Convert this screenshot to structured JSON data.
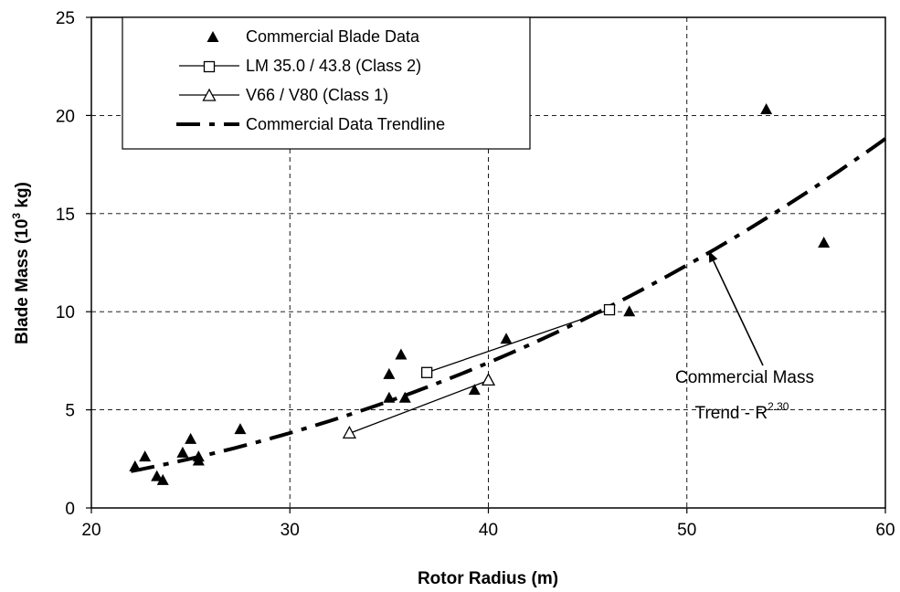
{
  "chart_data": {
    "type": "scatter",
    "xlabel": "Rotor Radius (m)",
    "ylabel_prefix": "Blade Mass (10",
    "ylabel_sup": "3",
    "ylabel_suffix": " kg)",
    "xlim": [
      20,
      60
    ],
    "ylim": [
      0,
      25
    ],
    "xticks": [
      20,
      30,
      40,
      50,
      60
    ],
    "yticks": [
      0,
      5,
      10,
      15,
      20,
      25
    ],
    "grid": true,
    "legend_position": "top-left",
    "series": [
      {
        "name": "Commercial Blade Data",
        "kind": "markers",
        "marker": "filled-triangle",
        "points": [
          [
            22.2,
            2.1
          ],
          [
            22.7,
            2.6
          ],
          [
            23.3,
            1.6
          ],
          [
            23.6,
            1.4
          ],
          [
            24.6,
            2.8
          ],
          [
            25.0,
            3.5
          ],
          [
            25.4,
            2.6
          ],
          [
            25.4,
            2.4
          ],
          [
            27.5,
            4.0
          ],
          [
            35.0,
            6.8
          ],
          [
            35.0,
            5.6
          ],
          [
            35.6,
            7.8
          ],
          [
            35.8,
            5.6
          ],
          [
            39.3,
            6.0
          ],
          [
            40.9,
            8.6
          ],
          [
            47.1,
            10.0
          ],
          [
            54.0,
            20.3
          ],
          [
            56.9,
            13.5
          ]
        ]
      },
      {
        "name": "LM 35.0 / 43.8 (Class 2)",
        "kind": "line-markers",
        "marker": "open-square",
        "points": [
          [
            36.9,
            6.9
          ],
          [
            46.1,
            10.1
          ]
        ]
      },
      {
        "name": "V66 / V80 (Class 1)",
        "kind": "line-markers",
        "marker": "open-triangle",
        "points": [
          [
            33.0,
            3.8
          ],
          [
            40.0,
            6.5
          ]
        ]
      },
      {
        "name": "Commercial Data Trendline",
        "kind": "power-trendline",
        "style": "dash-dot",
        "coefficient": 0.00153,
        "exponent": 2.3,
        "x_range": [
          22,
          60
        ]
      }
    ],
    "annotation": {
      "line1": "Commercial Mass",
      "line2_prefix": "Trend -  R",
      "line2_sup": "2.30",
      "arrow_target": [
        51.1,
        13.1
      ]
    }
  }
}
